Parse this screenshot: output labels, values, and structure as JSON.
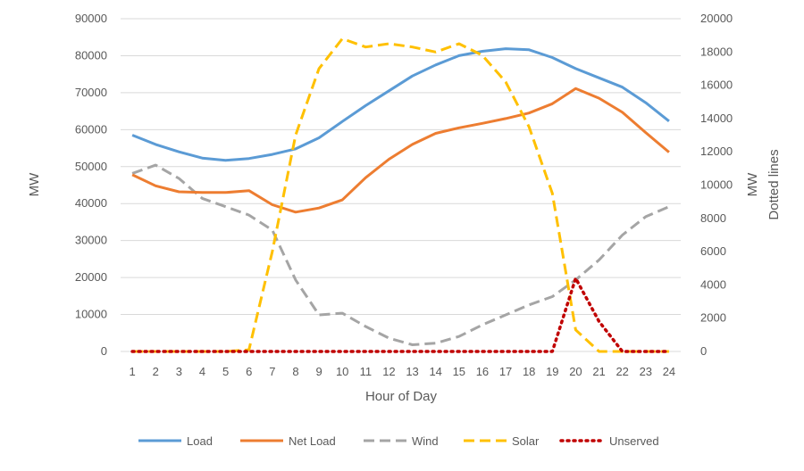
{
  "chart_data": {
    "type": "line",
    "xlabel": "Hour of Day",
    "ylabel": "MW",
    "y2label_lines": [
      "MW",
      "Dotted lines"
    ],
    "x": [
      1,
      2,
      3,
      4,
      5,
      6,
      7,
      8,
      9,
      10,
      11,
      12,
      13,
      14,
      15,
      16,
      17,
      18,
      19,
      20,
      21,
      22,
      23,
      24
    ],
    "ylim": [
      0,
      90000
    ],
    "y_ticks": [
      0,
      10000,
      20000,
      30000,
      40000,
      50000,
      60000,
      70000,
      80000,
      90000
    ],
    "y2lim": [
      0,
      20000
    ],
    "y2_ticks": [
      0,
      2000,
      4000,
      6000,
      8000,
      10000,
      12000,
      14000,
      16000,
      18000,
      20000
    ],
    "grid": "horizontal",
    "legend_position": "bottom",
    "series": [
      {
        "name": "Load",
        "axis": "left",
        "style": "solid",
        "color": "#5B9BD5",
        "values": [
          58500,
          56000,
          54000,
          52300,
          51700,
          52200,
          53300,
          54800,
          57800,
          62200,
          66500,
          70500,
          74500,
          77500,
          80000,
          81200,
          81900,
          81600,
          79500,
          76500,
          74000,
          71500,
          67300,
          62300
        ]
      },
      {
        "name": "Net Load",
        "axis": "left",
        "style": "solid",
        "color": "#ED7D31",
        "values": [
          47800,
          44800,
          43200,
          43000,
          43000,
          43500,
          39700,
          37700,
          38800,
          41000,
          47000,
          52000,
          56000,
          59000,
          60500,
          61700,
          63000,
          64500,
          67000,
          71100,
          68500,
          64700,
          59200,
          53900
        ]
      },
      {
        "name": "Wind",
        "axis": "right",
        "style": "dashed",
        "color": "#A5A5A5",
        "values": [
          10700,
          11200,
          10400,
          9200,
          8700,
          8200,
          7300,
          4300,
          2200,
          2300,
          1500,
          800,
          400,
          500,
          900,
          1600,
          2200,
          2800,
          3300,
          4300,
          5500,
          7000,
          8100,
          8700
        ]
      },
      {
        "name": "Solar",
        "axis": "right",
        "style": "dashed",
        "color": "#FFC000",
        "values": [
          0,
          0,
          0,
          0,
          0,
          100,
          6000,
          13000,
          17000,
          18800,
          18300,
          18500,
          18300,
          18000,
          18500,
          17800,
          16200,
          13500,
          9500,
          1300,
          0,
          0,
          0,
          0
        ]
      },
      {
        "name": "Unserved",
        "axis": "right",
        "style": "dotted",
        "color": "#C00000",
        "values": [
          0,
          0,
          0,
          0,
          0,
          0,
          0,
          0,
          0,
          0,
          0,
          0,
          0,
          0,
          0,
          0,
          0,
          0,
          0,
          4400,
          1800,
          0,
          0,
          0
        ]
      }
    ]
  }
}
